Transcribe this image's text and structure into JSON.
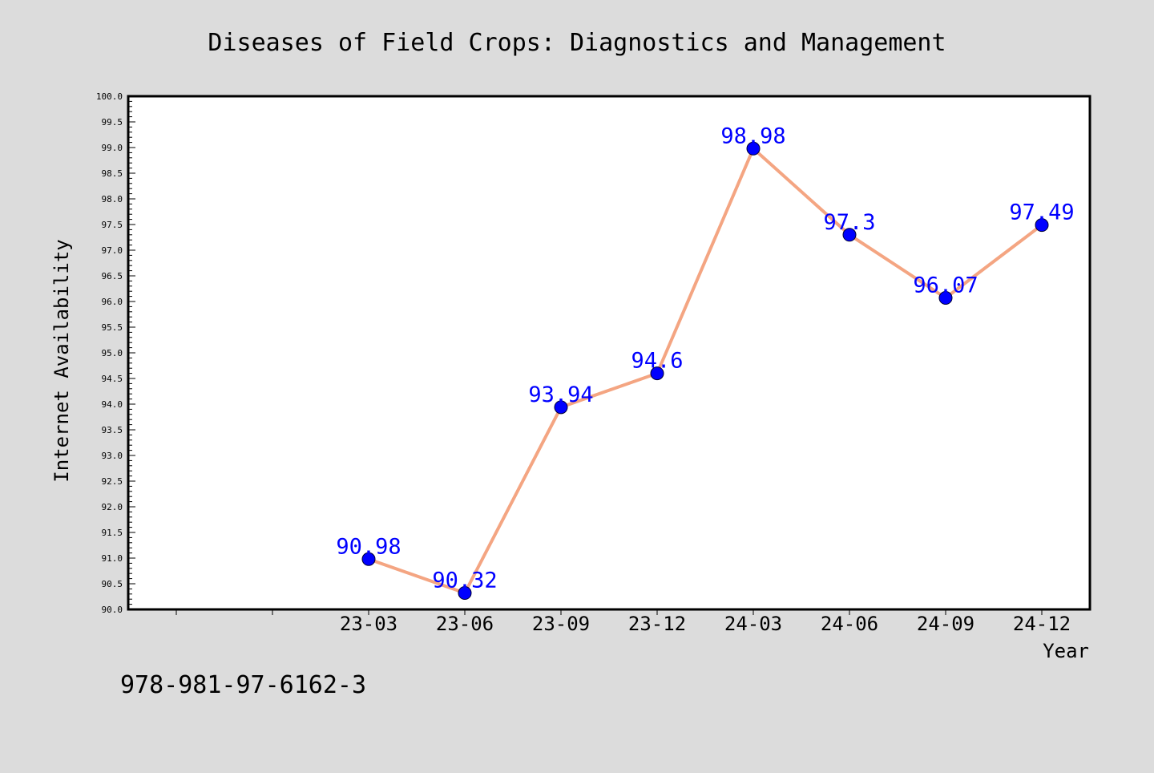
{
  "chart_data": {
    "type": "line",
    "title": "Diseases of Field Crops: Diagnostics and Management",
    "xlabel": "Year",
    "ylabel": "Internet Availability",
    "ylim": [
      90.0,
      100.0
    ],
    "yticks": [
      "90.0",
      "90.5",
      "91.0",
      "91.5",
      "92.0",
      "92.5",
      "93.0",
      "93.5",
      "94.0",
      "94.5",
      "95.0",
      "95.5",
      "96.0",
      "96.5",
      "97.0",
      "97.5",
      "98.0",
      "98.5",
      "99.0",
      "99.5",
      "100.0"
    ],
    "categories": [
      "",
      "",
      "23-03",
      "23-06",
      "23-09",
      "23-12",
      "24-03",
      "24-06",
      "24-09",
      "24-12"
    ],
    "series": [
      {
        "values": [
          null,
          null,
          90.98,
          90.32,
          93.94,
          94.6,
          98.98,
          97.3,
          96.07,
          97.49
        ],
        "labels": [
          "",
          "",
          "90.98",
          "90.32",
          "93.94",
          "94.6",
          "98.98",
          "97.3",
          "96.07",
          "97.49"
        ]
      }
    ],
    "grid": false,
    "legend": "none",
    "line_color": "#f4a582",
    "marker_color": "#0000ff",
    "label_color": "#0000ff"
  },
  "footer": {
    "isbn": "978-981-97-6162-3"
  }
}
